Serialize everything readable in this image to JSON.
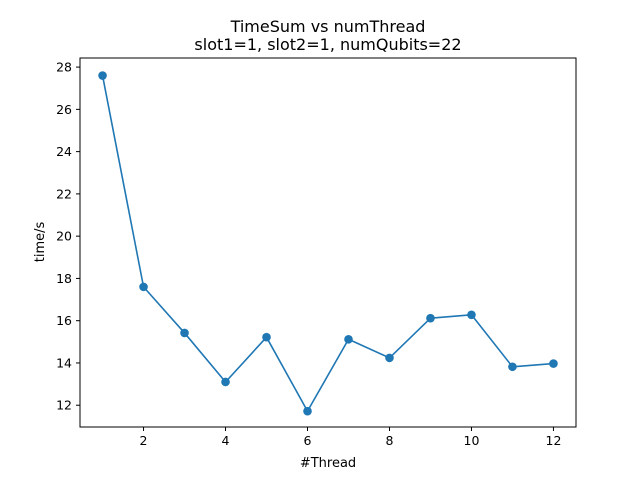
{
  "chart_data": {
    "type": "line",
    "title": "TimeSum vs numThread",
    "subtitle": "slot1=1, slot2=1, numQubits=22",
    "xlabel": "#Thread",
    "ylabel": "time/s",
    "xlim": [
      0.45,
      12.55
    ],
    "ylim": [
      10.97,
      28.43
    ],
    "xticks": [
      2,
      4,
      6,
      8,
      10,
      12
    ],
    "yticks": [
      12,
      14,
      16,
      18,
      20,
      22,
      24,
      26,
      28
    ],
    "grid": false,
    "line_color": "#1f77b4",
    "x": [
      1,
      2,
      3,
      4,
      5,
      6,
      7,
      8,
      9,
      10,
      11,
      12
    ],
    "series": [
      {
        "values": [
          27.6,
          17.6,
          15.42,
          13.1,
          15.22,
          11.72,
          15.12,
          14.24,
          16.12,
          16.28,
          13.82,
          13.97
        ]
      }
    ]
  }
}
